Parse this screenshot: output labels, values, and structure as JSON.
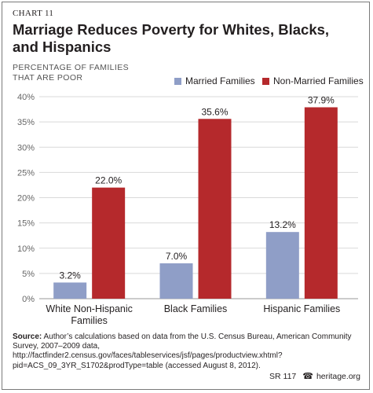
{
  "chart_number": "CHART 11",
  "title": "Marriage Reduces Poverty for Whites, Blacks, and Hispanics",
  "source": {
    "label": "Source:",
    "text": "Author’s calculations based on data from the U.S. Census Bureau, American Community Survey, 2007–2009 data, http://factfinder2.census.gov/faces/tableservices/jsf/pages/productview.xhtml?pid=ACS_09_3YR_S1702&prodType=table (accessed August 8, 2012)."
  },
  "footer": {
    "report_id": "SR 117",
    "bell_icon": "bell-icon",
    "site": "heritage.org"
  },
  "chart_data": {
    "type": "bar",
    "title": "Marriage Reduces Poverty for Whites, Blacks, and Hispanics",
    "ylabel": "PERCENTAGE OF FAMILIES THAT ARE POOR",
    "xlabel": "",
    "categories": [
      "White Non-Hispanic Families",
      "Black Families",
      "Hispanic Families"
    ],
    "series": [
      {
        "name": "Married Families",
        "values": [
          3.2,
          7.0,
          13.2
        ],
        "labels": [
          "3.2%",
          "7.0%",
          "13.2%"
        ],
        "color": "#8f9ec7"
      },
      {
        "name": "Non-Married Families",
        "values": [
          22.0,
          35.6,
          37.9
        ],
        "labels": [
          "22.0%",
          "35.6%",
          "37.9%"
        ],
        "color": "#b5292c"
      }
    ],
    "ylim": [
      0,
      40
    ],
    "yticks": [
      0,
      5,
      10,
      15,
      20,
      25,
      30,
      35,
      40
    ],
    "ytick_labels": [
      "0%",
      "5%",
      "10%",
      "15%",
      "20%",
      "25%",
      "30%",
      "35%",
      "40%"
    ],
    "grid": true,
    "legend": "top-right",
    "colors": {
      "grid": "#d9d9d9",
      "axis": "#9a9a9a",
      "tick_text": "#666666"
    }
  }
}
